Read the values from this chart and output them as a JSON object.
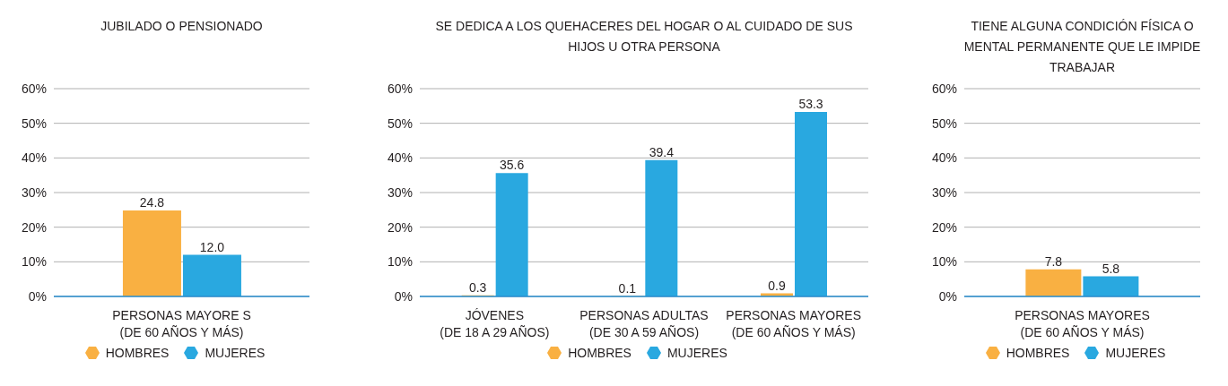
{
  "chart_data": [
    {
      "type": "bar",
      "title": "JUBILADO O PENSIONADO",
      "categories": [
        "PERSONAS MAYORE S (DE 60 AÑOS Y MÁS)"
      ],
      "series": [
        {
          "name": "HOMBRES",
          "color": "#f9b042",
          "values": [
            24.8
          ],
          "value_labels": [
            "24.8"
          ]
        },
        {
          "name": "MUJERES",
          "color": "#29a8e0",
          "values": [
            12.0
          ],
          "value_labels": [
            "12.0"
          ]
        }
      ],
      "ylim": [
        0,
        60
      ],
      "yticks": [
        {
          "value": 0,
          "label": "0%"
        },
        {
          "value": 10,
          "label": "10%"
        },
        {
          "value": 20,
          "label": "20%"
        },
        {
          "value": 30,
          "label": "30%"
        },
        {
          "value": 40,
          "label": "40%"
        },
        {
          "value": 50,
          "label": "50%"
        },
        {
          "value": 60,
          "label": "60%"
        }
      ],
      "grid": "y",
      "legend": "bottom"
    },
    {
      "type": "bar",
      "title": "SE DEDICA A LOS QUEHACERES DEL HOGAR O AL CUIDADO DE SUS HIJOS U OTRA PERSONA",
      "categories": [
        "JÓVENES (DE 18 A 29 AÑOS)",
        "PERSONAS ADULTAS (DE 30 A 59 AÑOS)",
        "PERSONAS MAYORES (DE 60 AÑOS Y MÁS)"
      ],
      "series": [
        {
          "name": "HOMBRES",
          "color": "#f9b042",
          "values": [
            0.3,
            0.1,
            0.9
          ],
          "value_labels": [
            "0.3",
            "0.1",
            "0.9"
          ]
        },
        {
          "name": "MUJERES",
          "color": "#29a8e0",
          "values": [
            35.6,
            39.4,
            53.3
          ],
          "value_labels": [
            "35.6",
            "39.4",
            "53.3"
          ]
        }
      ],
      "ylim": [
        0,
        60
      ],
      "yticks": [
        {
          "value": 0,
          "label": "0%"
        },
        {
          "value": 10,
          "label": "10%"
        },
        {
          "value": 20,
          "label": "20%"
        },
        {
          "value": 30,
          "label": "30%"
        },
        {
          "value": 40,
          "label": "40%"
        },
        {
          "value": 50,
          "label": "50%"
        },
        {
          "value": 60,
          "label": "60%"
        }
      ],
      "grid": "y",
      "legend": "bottom"
    },
    {
      "type": "bar",
      "title": "TIENE ALGUNA CONDICIÓN FÍSICA O MENTAL PERMANENTE QUE LE IMPIDE TRABAJAR",
      "categories": [
        "PERSONAS MAYORES (DE 60 AÑOS Y MÁS)"
      ],
      "series": [
        {
          "name": "HOMBRES",
          "color": "#f9b042",
          "values": [
            7.8
          ],
          "value_labels": [
            "7.8"
          ]
        },
        {
          "name": "MUJERES",
          "color": "#29a8e0",
          "values": [
            5.8
          ],
          "value_labels": [
            "5.8"
          ]
        }
      ],
      "ylim": [
        0,
        60
      ],
      "yticks": [
        {
          "value": 0,
          "label": "0%"
        },
        {
          "value": 10,
          "label": "10%"
        },
        {
          "value": 20,
          "label": "20%"
        },
        {
          "value": 30,
          "label": "30%"
        },
        {
          "value": 40,
          "label": "40%"
        },
        {
          "value": 50,
          "label": "50%"
        },
        {
          "value": 60,
          "label": "60%"
        }
      ],
      "grid": "y",
      "legend": "bottom"
    }
  ]
}
